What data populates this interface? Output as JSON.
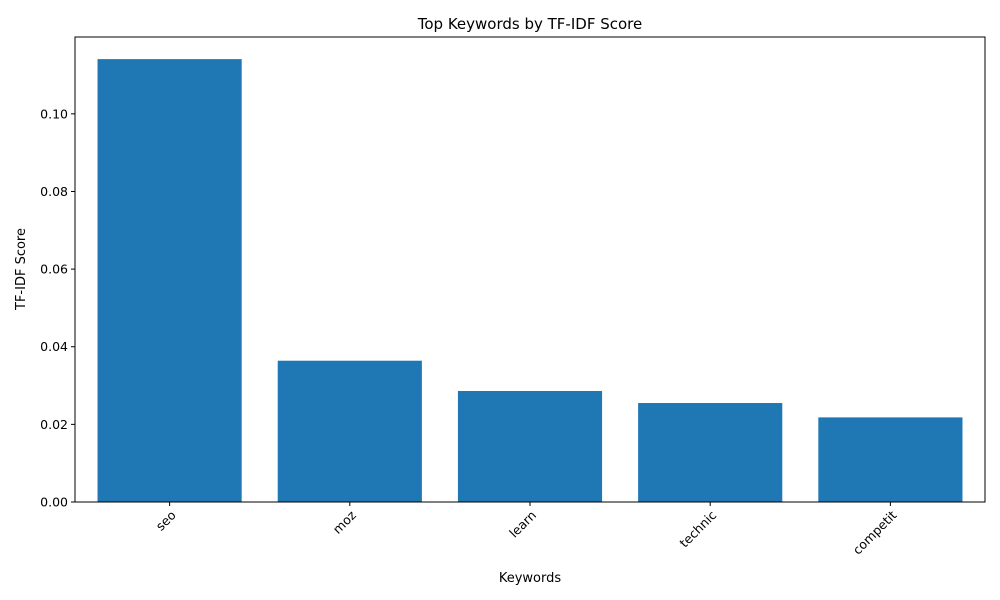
{
  "chart_data": {
    "type": "bar",
    "title": "Top Keywords by TF-IDF Score",
    "xlabel": "Keywords",
    "ylabel": "TF-IDF Score",
    "categories": [
      "seo",
      "moz",
      "learn",
      "technic",
      "competit"
    ],
    "values": [
      0.1141,
      0.0364,
      0.0286,
      0.0255,
      0.0218
    ],
    "ylim": [
      0,
      0.1198
    ],
    "yticks": [
      "0.00",
      "0.02",
      "0.04",
      "0.06",
      "0.08",
      "0.10"
    ],
    "bar_color": "#1f77b4",
    "grid": false,
    "xtick_rotation": "45 degrees"
  }
}
